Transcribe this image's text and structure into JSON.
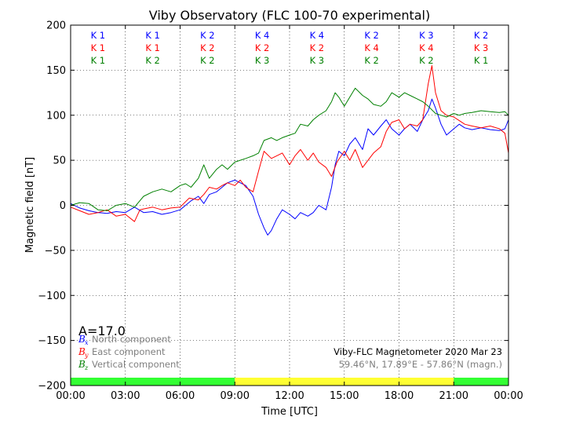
{
  "chart_data": {
    "type": "line",
    "title": "Viby Observatory (FLC 100-70 experimental)",
    "xlabel": "Time [UTC]",
    "ylabel": "Magnetic field [nT]",
    "xlim": [
      0,
      24
    ],
    "ylim": [
      -200,
      200
    ],
    "x_ticks": [
      0,
      3,
      6,
      9,
      12,
      15,
      18,
      21,
      24
    ],
    "x_tick_labels": [
      "00:00",
      "03:00",
      "06:00",
      "09:00",
      "12:00",
      "15:00",
      "18:00",
      "21:00",
      "00:00"
    ],
    "y_ticks": [
      -200,
      -150,
      -100,
      -50,
      0,
      50,
      100,
      150,
      200
    ],
    "y_tick_labels": [
      "−200",
      "−150",
      "−100",
      "−50",
      "0",
      "50",
      "100",
      "150",
      "200"
    ],
    "grid": true,
    "series": [
      {
        "key": "north",
        "name": "North component",
        "symbol": "B",
        "subscript": "x",
        "color": "#0000ff",
        "points": [
          [
            0,
            2
          ],
          [
            0.5,
            -3
          ],
          [
            1,
            -6
          ],
          [
            1.5,
            -8
          ],
          [
            2,
            -9
          ],
          [
            2.5,
            -7
          ],
          [
            3,
            -8
          ],
          [
            3.5,
            -2
          ],
          [
            4,
            -8
          ],
          [
            4.5,
            -7
          ],
          [
            5,
            -10
          ],
          [
            5.5,
            -8
          ],
          [
            6,
            -5
          ],
          [
            6.3,
            0
          ],
          [
            6.6,
            5
          ],
          [
            7,
            10
          ],
          [
            7.3,
            2
          ],
          [
            7.6,
            12
          ],
          [
            8,
            15
          ],
          [
            8.3,
            20
          ],
          [
            8.6,
            25
          ],
          [
            9,
            28
          ],
          [
            9.3,
            25
          ],
          [
            9.6,
            22
          ],
          [
            10,
            10
          ],
          [
            10.3,
            -10
          ],
          [
            10.6,
            -25
          ],
          [
            10.8,
            -33
          ],
          [
            11,
            -28
          ],
          [
            11.3,
            -15
          ],
          [
            11.6,
            -5
          ],
          [
            12,
            -10
          ],
          [
            12.3,
            -15
          ],
          [
            12.6,
            -8
          ],
          [
            13,
            -12
          ],
          [
            13.3,
            -8
          ],
          [
            13.6,
            0
          ],
          [
            14,
            -5
          ],
          [
            14.3,
            20
          ],
          [
            14.5,
            45
          ],
          [
            14.7,
            60
          ],
          [
            15,
            55
          ],
          [
            15.3,
            68
          ],
          [
            15.6,
            75
          ],
          [
            16,
            62
          ],
          [
            16.3,
            85
          ],
          [
            16.6,
            78
          ],
          [
            17,
            88
          ],
          [
            17.3,
            95
          ],
          [
            17.6,
            85
          ],
          [
            18,
            78
          ],
          [
            18.3,
            85
          ],
          [
            18.6,
            90
          ],
          [
            19,
            82
          ],
          [
            19.3,
            95
          ],
          [
            19.6,
            105
          ],
          [
            19.8,
            118
          ],
          [
            20,
            108
          ],
          [
            20.3,
            90
          ],
          [
            20.6,
            78
          ],
          [
            21,
            85
          ],
          [
            21.3,
            90
          ],
          [
            21.6,
            86
          ],
          [
            22,
            84
          ],
          [
            22.5,
            86
          ],
          [
            23,
            84
          ],
          [
            23.5,
            83
          ],
          [
            23.8,
            85
          ],
          [
            24,
            95
          ]
        ]
      },
      {
        "key": "east",
        "name": "East component",
        "symbol": "B",
        "subscript": "y",
        "color": "#ff0000",
        "points": [
          [
            0,
            -2
          ],
          [
            0.5,
            -6
          ],
          [
            1,
            -10
          ],
          [
            1.5,
            -8
          ],
          [
            2,
            -5
          ],
          [
            2.5,
            -12
          ],
          [
            3,
            -10
          ],
          [
            3.5,
            -18
          ],
          [
            3.8,
            -5
          ],
          [
            4,
            -4
          ],
          [
            4.5,
            -2
          ],
          [
            5,
            -5
          ],
          [
            5.5,
            -3
          ],
          [
            6,
            -2
          ],
          [
            6.5,
            8
          ],
          [
            7,
            6
          ],
          [
            7.3,
            12
          ],
          [
            7.6,
            20
          ],
          [
            8,
            18
          ],
          [
            8.3,
            22
          ],
          [
            8.6,
            25
          ],
          [
            9,
            22
          ],
          [
            9.3,
            28
          ],
          [
            9.6,
            20
          ],
          [
            10,
            15
          ],
          [
            10.3,
            38
          ],
          [
            10.6,
            60
          ],
          [
            11,
            52
          ],
          [
            11.3,
            55
          ],
          [
            11.6,
            58
          ],
          [
            12,
            45
          ],
          [
            12.3,
            55
          ],
          [
            12.6,
            62
          ],
          [
            13,
            50
          ],
          [
            13.3,
            58
          ],
          [
            13.6,
            48
          ],
          [
            14,
            42
          ],
          [
            14.3,
            32
          ],
          [
            14.6,
            48
          ],
          [
            15,
            60
          ],
          [
            15.3,
            50
          ],
          [
            15.6,
            62
          ],
          [
            16,
            42
          ],
          [
            16.3,
            50
          ],
          [
            16.6,
            58
          ],
          [
            17,
            65
          ],
          [
            17.3,
            82
          ],
          [
            17.6,
            92
          ],
          [
            18,
            95
          ],
          [
            18.3,
            85
          ],
          [
            18.6,
            90
          ],
          [
            19,
            88
          ],
          [
            19.3,
            95
          ],
          [
            19.6,
            135
          ],
          [
            19.8,
            155
          ],
          [
            20,
            125
          ],
          [
            20.3,
            105
          ],
          [
            20.6,
            100
          ],
          [
            21,
            98
          ],
          [
            21.3,
            94
          ],
          [
            21.6,
            90
          ],
          [
            22,
            88
          ],
          [
            22.5,
            86
          ],
          [
            23,
            88
          ],
          [
            23.5,
            85
          ],
          [
            23.8,
            80
          ],
          [
            24,
            58
          ]
        ]
      },
      {
        "key": "vertical",
        "name": "Vertical component",
        "symbol": "B",
        "subscript": "z",
        "color": "#008000",
        "points": [
          [
            0,
            0
          ],
          [
            0.5,
            3
          ],
          [
            1,
            2
          ],
          [
            1.5,
            -5
          ],
          [
            2,
            -6
          ],
          [
            2.5,
            0
          ],
          [
            3,
            2
          ],
          [
            3.5,
            -2
          ],
          [
            4,
            10
          ],
          [
            4.5,
            15
          ],
          [
            5,
            18
          ],
          [
            5.5,
            15
          ],
          [
            6,
            22
          ],
          [
            6.3,
            24
          ],
          [
            6.6,
            20
          ],
          [
            7,
            30
          ],
          [
            7.3,
            45
          ],
          [
            7.6,
            30
          ],
          [
            8,
            40
          ],
          [
            8.3,
            45
          ],
          [
            8.6,
            40
          ],
          [
            9,
            48
          ],
          [
            9.3,
            50
          ],
          [
            9.6,
            52
          ],
          [
            10,
            55
          ],
          [
            10.3,
            58
          ],
          [
            10.6,
            72
          ],
          [
            11,
            75
          ],
          [
            11.3,
            72
          ],
          [
            11.6,
            75
          ],
          [
            12,
            78
          ],
          [
            12.3,
            80
          ],
          [
            12.6,
            90
          ],
          [
            13,
            88
          ],
          [
            13.3,
            95
          ],
          [
            13.6,
            100
          ],
          [
            14,
            105
          ],
          [
            14.3,
            115
          ],
          [
            14.5,
            125
          ],
          [
            14.7,
            120
          ],
          [
            15,
            110
          ],
          [
            15.3,
            120
          ],
          [
            15.6,
            130
          ],
          [
            16,
            122
          ],
          [
            16.3,
            118
          ],
          [
            16.6,
            112
          ],
          [
            17,
            110
          ],
          [
            17.3,
            115
          ],
          [
            17.6,
            125
          ],
          [
            18,
            120
          ],
          [
            18.3,
            125
          ],
          [
            18.6,
            122
          ],
          [
            19,
            118
          ],
          [
            19.3,
            115
          ],
          [
            19.6,
            110
          ],
          [
            20,
            102
          ],
          [
            20.3,
            100
          ],
          [
            20.6,
            98
          ],
          [
            21,
            102
          ],
          [
            21.3,
            100
          ],
          [
            21.6,
            102
          ],
          [
            22,
            103
          ],
          [
            22.5,
            105
          ],
          [
            23,
            104
          ],
          [
            23.5,
            103
          ],
          [
            23.8,
            104
          ],
          [
            24,
            100
          ]
        ]
      }
    ],
    "k_indices": {
      "rows": [
        {
          "color": "#0000ff",
          "values": [
            "K 1",
            "K 1",
            "K 2",
            "K 4",
            "K 4",
            "K 2",
            "K 3",
            "K 2"
          ]
        },
        {
          "color": "#ff0000",
          "values": [
            "K 1",
            "K 1",
            "K 2",
            "K 2",
            "K 2",
            "K 4",
            "K 4",
            "K 3"
          ]
        },
        {
          "color": "#008000",
          "values": [
            "K 1",
            "K 2",
            "K 2",
            "K 3",
            "K 3",
            "K 2",
            "K 2",
            "K 1"
          ]
        }
      ]
    },
    "a_index_text": "A=17.0",
    "info_line1": "Viby-FLC Magnetometer 2020 Mar 23",
    "info_line2": "59.46°N, 17.89°E - 57.86°N (magn.)",
    "daylight_bands": [
      {
        "from": 0,
        "to": 9,
        "color": "#33ff33"
      },
      {
        "from": 9,
        "to": 21,
        "color": "#ffff33"
      },
      {
        "from": 21,
        "to": 24,
        "color": "#33ff33"
      }
    ]
  }
}
